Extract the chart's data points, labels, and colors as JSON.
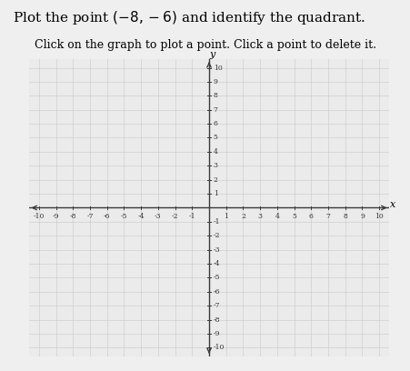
{
  "title": "Plot the point $(-8, -6)$ and identify the quadrant.",
  "subtitle": "Click on the graph to plot a point. Click a point to delete it.",
  "point": null,
  "xlim": [
    -10,
    10
  ],
  "ylim": [
    -10,
    10
  ],
  "xticks": [
    -10,
    -9,
    -8,
    -7,
    -6,
    -5,
    -4,
    -3,
    -2,
    -1,
    1,
    2,
    3,
    4,
    5,
    6,
    7,
    8,
    9,
    10
  ],
  "yticks": [
    -10,
    -9,
    -8,
    -7,
    -6,
    -5,
    -4,
    -3,
    -2,
    -1,
    1,
    2,
    3,
    4,
    5,
    6,
    7,
    8,
    9,
    10
  ],
  "grid_color": "#c8c8c8",
  "axis_color": "#3a3a3a",
  "background_color": "#efefef",
  "plot_bg_color": "#ebebeb",
  "title_fontsize": 11,
  "subtitle_fontsize": 9,
  "tick_fontsize": 5.5,
  "axis_label_fontsize": 8
}
